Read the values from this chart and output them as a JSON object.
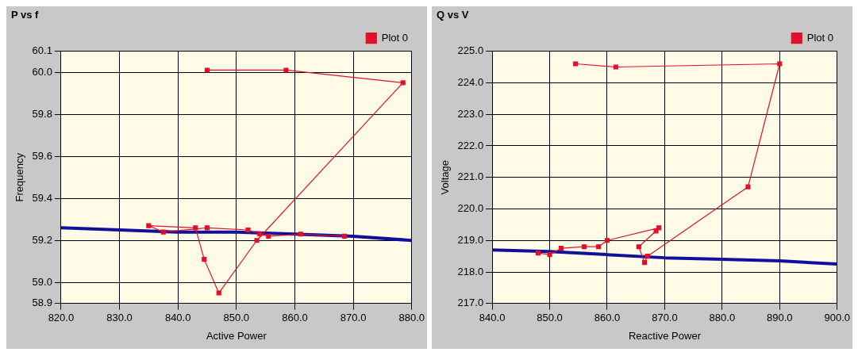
{
  "chart_data": [
    {
      "type": "line",
      "title": "P vs f",
      "xlabel": "Active Power",
      "ylabel": "Frequency",
      "xlim": [
        820,
        880
      ],
      "ylim": [
        58.9,
        60.1
      ],
      "xticks": [
        {
          "value": 820,
          "label": "820.0"
        },
        {
          "value": 830,
          "label": "830.0"
        },
        {
          "value": 840,
          "label": "840.0"
        },
        {
          "value": 850,
          "label": "850.0"
        },
        {
          "value": 860,
          "label": "860.0"
        },
        {
          "value": 870,
          "label": "870.0"
        },
        {
          "value": 880,
          "label": "880.0"
        }
      ],
      "yticks": [
        58.9,
        {
          "value": 59,
          "label": "59.0"
        },
        59.2,
        59.4,
        59.6,
        59.8,
        {
          "value": 60,
          "label": "60.0"
        },
        60.1
      ],
      "grid": true,
      "legend": "top right",
      "series": [
        {
          "name": "Plot 0",
          "color": "#e0102a",
          "marker": "square",
          "x": [
            845,
            858.5,
            878.5,
            853.5,
            847,
            844.5,
            843,
            835,
            837.5,
            845,
            852,
            854,
            855.5,
            861,
            868.5
          ],
          "values": [
            60.01,
            60.01,
            59.95,
            59.2,
            58.95,
            59.11,
            59.26,
            59.27,
            59.24,
            59.26,
            59.25,
            59.23,
            59.22,
            59.23,
            59.22
          ]
        },
        {
          "color": "#10109a",
          "marker": "none",
          "x": [
            820,
            830,
            840,
            850,
            860,
            870,
            880
          ],
          "values": [
            59.26,
            59.25,
            59.24,
            59.24,
            59.23,
            59.22,
            59.2
          ]
        }
      ]
    },
    {
      "type": "line",
      "title": "Q vs V",
      "xlabel": "Reactive Power",
      "ylabel": "Voltage",
      "xlim": [
        840,
        900
      ],
      "ylim": [
        217,
        225
      ],
      "xticks": [
        {
          "value": 840,
          "label": "840.0"
        },
        {
          "value": 850,
          "label": "850.0"
        },
        {
          "value": 860,
          "label": "860.0"
        },
        {
          "value": 870,
          "label": "870.0"
        },
        {
          "value": 880,
          "label": "880.0"
        },
        {
          "value": 890,
          "label": "890.0"
        },
        {
          "value": 900,
          "label": "900.0"
        }
      ],
      "yticks": [
        {
          "value": 217,
          "label": "217.0"
        },
        {
          "value": 218,
          "label": "218.0"
        },
        {
          "value": 219,
          "label": "219.0"
        },
        {
          "value": 220,
          "label": "220.0"
        },
        {
          "value": 221,
          "label": "221.0"
        },
        {
          "value": 222,
          "label": "222.0"
        },
        {
          "value": 223,
          "label": "223.0"
        },
        {
          "value": 224,
          "label": "224.0"
        },
        {
          "value": 225,
          "label": "225.0"
        }
      ],
      "grid": true,
      "legend": "top right",
      "series": [
        {
          "name": "Plot 0",
          "color": "#e0102a",
          "marker": "square",
          "x": [
            854.5,
            861.5,
            890,
            884.5,
            867,
            866.5,
            865.5,
            868.5,
            869,
            860,
            858.5,
            856,
            852,
            850,
            848
          ],
          "values": [
            224.6,
            224.5,
            224.6,
            220.7,
            218.5,
            218.3,
            218.8,
            219.3,
            219.4,
            219.0,
            218.8,
            218.8,
            218.75,
            218.55,
            218.6
          ]
        },
        {
          "color": "#10109a",
          "marker": "none",
          "x": [
            840,
            850,
            860,
            870,
            880,
            890,
            900
          ],
          "values": [
            218.7,
            218.65,
            218.55,
            218.45,
            218.4,
            218.35,
            218.25
          ]
        }
      ]
    }
  ]
}
